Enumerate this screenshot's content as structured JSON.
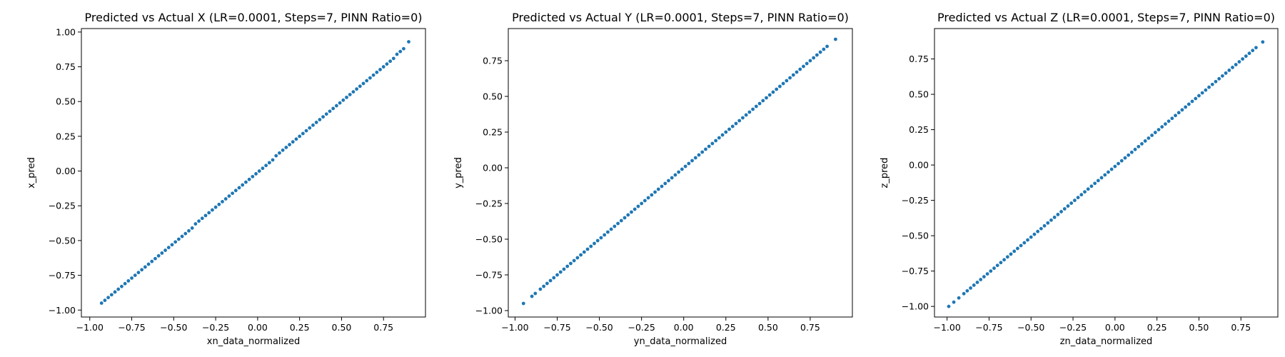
{
  "chart_data": [
    {
      "type": "scatter",
      "title": "Predicted vs Actual X (LR=0.0001, Steps=7, PINN Ratio=0)",
      "xlabel": "xn_data_normalized",
      "ylabel": "x_pred",
      "xlim": [
        -1.05,
        1.0
      ],
      "ylim": [
        -1.05,
        1.025
      ],
      "xticks": [
        -1.0,
        -0.75,
        -0.5,
        -0.25,
        0.0,
        0.25,
        0.5,
        0.75
      ],
      "xtick_labels": [
        "−1.00",
        "−0.75",
        "−0.50",
        "−0.25",
        "0.00",
        "0.25",
        "0.50",
        "0.75"
      ],
      "yticks": [
        -1.0,
        -0.75,
        -0.5,
        -0.25,
        0.0,
        0.25,
        0.5,
        0.75,
        1.0
      ],
      "ytick_labels": [
        "−1.00",
        "−0.75",
        "−0.50",
        "−0.25",
        "0.00",
        "0.25",
        "0.50",
        "0.75",
        "1.00"
      ],
      "grid": false,
      "color": "#1f77b4",
      "x": [
        -0.93,
        -0.91,
        -0.89,
        -0.87,
        -0.85,
        -0.83,
        -0.81,
        -0.79,
        -0.77,
        -0.75,
        -0.73,
        -0.71,
        -0.69,
        -0.67,
        -0.65,
        -0.63,
        -0.61,
        -0.59,
        -0.57,
        -0.55,
        -0.53,
        -0.51,
        -0.49,
        -0.47,
        -0.45,
        -0.43,
        -0.41,
        -0.39,
        -0.37,
        -0.35,
        -0.33,
        -0.31,
        -0.29,
        -0.27,
        -0.25,
        -0.23,
        -0.21,
        -0.19,
        -0.17,
        -0.15,
        -0.13,
        -0.11,
        -0.09,
        -0.07,
        -0.05,
        -0.03,
        -0.01,
        0.01,
        0.03,
        0.05,
        0.07,
        0.09,
        0.11,
        0.13,
        0.15,
        0.17,
        0.19,
        0.21,
        0.23,
        0.25,
        0.27,
        0.29,
        0.31,
        0.33,
        0.35,
        0.37,
        0.39,
        0.41,
        0.43,
        0.45,
        0.47,
        0.49,
        0.51,
        0.53,
        0.55,
        0.57,
        0.59,
        0.61,
        0.63,
        0.65,
        0.67,
        0.69,
        0.71,
        0.73,
        0.75,
        0.77,
        0.79,
        0.81,
        0.83,
        0.85,
        0.87,
        0.9
      ],
      "y": [
        -0.95,
        -0.93,
        -0.91,
        -0.89,
        -0.87,
        -0.85,
        -0.83,
        -0.81,
        -0.79,
        -0.77,
        -0.75,
        -0.73,
        -0.71,
        -0.69,
        -0.67,
        -0.65,
        -0.63,
        -0.61,
        -0.59,
        -0.57,
        -0.55,
        -0.53,
        -0.51,
        -0.49,
        -0.47,
        -0.45,
        -0.43,
        -0.41,
        -0.38,
        -0.36,
        -0.34,
        -0.32,
        -0.3,
        -0.28,
        -0.26,
        -0.24,
        -0.22,
        -0.2,
        -0.18,
        -0.16,
        -0.14,
        -0.12,
        -0.1,
        -0.08,
        -0.06,
        -0.04,
        -0.02,
        0.0,
        0.02,
        0.04,
        0.06,
        0.08,
        0.11,
        0.13,
        0.15,
        0.17,
        0.19,
        0.21,
        0.23,
        0.25,
        0.27,
        0.29,
        0.31,
        0.33,
        0.35,
        0.37,
        0.39,
        0.41,
        0.43,
        0.45,
        0.47,
        0.49,
        0.51,
        0.53,
        0.55,
        0.57,
        0.59,
        0.61,
        0.63,
        0.65,
        0.67,
        0.69,
        0.71,
        0.73,
        0.75,
        0.77,
        0.79,
        0.81,
        0.84,
        0.86,
        0.88,
        0.93
      ]
    },
    {
      "type": "scatter",
      "title": "Predicted vs Actual Y (LR=0.0001, Steps=7, PINN Ratio=0)",
      "xlabel": "yn_data_normalized",
      "ylabel": "y_pred",
      "xlim": [
        -1.04,
        1.0
      ],
      "ylim": [
        -1.045,
        0.975
      ],
      "xticks": [
        -1.0,
        -0.75,
        -0.5,
        -0.25,
        0.0,
        0.25,
        0.5,
        0.75
      ],
      "xtick_labels": [
        "−1.00",
        "−0.75",
        "−0.50",
        "−0.25",
        "0.00",
        "0.25",
        "0.50",
        "0.75"
      ],
      "yticks": [
        -1.0,
        -0.75,
        -0.5,
        -0.25,
        0.0,
        0.25,
        0.5,
        0.75
      ],
      "ytick_labels": [
        "−1.00",
        "−0.75",
        "−0.50",
        "−0.25",
        "0.00",
        "0.25",
        "0.50",
        "0.75"
      ],
      "grid": false,
      "color": "#1f77b4",
      "x": [
        -0.95,
        -0.9,
        -0.88,
        -0.85,
        -0.83,
        -0.81,
        -0.79,
        -0.77,
        -0.75,
        -0.73,
        -0.71,
        -0.69,
        -0.67,
        -0.65,
        -0.63,
        -0.61,
        -0.59,
        -0.57,
        -0.55,
        -0.53,
        -0.51,
        -0.49,
        -0.47,
        -0.45,
        -0.43,
        -0.41,
        -0.39,
        -0.37,
        -0.35,
        -0.33,
        -0.31,
        -0.29,
        -0.27,
        -0.25,
        -0.23,
        -0.21,
        -0.19,
        -0.17,
        -0.15,
        -0.13,
        -0.11,
        -0.09,
        -0.07,
        -0.05,
        -0.03,
        -0.01,
        0.01,
        0.03,
        0.05,
        0.07,
        0.09,
        0.11,
        0.13,
        0.15,
        0.17,
        0.19,
        0.21,
        0.23,
        0.25,
        0.27,
        0.29,
        0.31,
        0.33,
        0.35,
        0.37,
        0.39,
        0.41,
        0.43,
        0.45,
        0.47,
        0.49,
        0.51,
        0.53,
        0.55,
        0.57,
        0.59,
        0.61,
        0.63,
        0.65,
        0.67,
        0.69,
        0.71,
        0.73,
        0.75,
        0.77,
        0.79,
        0.81,
        0.83,
        0.85,
        0.9
      ],
      "y": [
        -0.95,
        -0.9,
        -0.88,
        -0.85,
        -0.83,
        -0.81,
        -0.79,
        -0.77,
        -0.75,
        -0.73,
        -0.71,
        -0.69,
        -0.67,
        -0.65,
        -0.63,
        -0.61,
        -0.59,
        -0.57,
        -0.55,
        -0.53,
        -0.51,
        -0.49,
        -0.47,
        -0.45,
        -0.43,
        -0.41,
        -0.39,
        -0.37,
        -0.35,
        -0.33,
        -0.31,
        -0.29,
        -0.27,
        -0.25,
        -0.23,
        -0.21,
        -0.19,
        -0.17,
        -0.15,
        -0.13,
        -0.11,
        -0.09,
        -0.07,
        -0.05,
        -0.03,
        -0.01,
        0.01,
        0.03,
        0.05,
        0.07,
        0.09,
        0.11,
        0.13,
        0.15,
        0.17,
        0.19,
        0.21,
        0.23,
        0.25,
        0.27,
        0.29,
        0.31,
        0.33,
        0.35,
        0.37,
        0.39,
        0.41,
        0.43,
        0.45,
        0.47,
        0.49,
        0.51,
        0.53,
        0.55,
        0.57,
        0.59,
        0.61,
        0.63,
        0.65,
        0.67,
        0.69,
        0.71,
        0.73,
        0.75,
        0.77,
        0.79,
        0.81,
        0.83,
        0.85,
        0.9
      ]
    },
    {
      "type": "scatter",
      "title": "Predicted vs Actual Z (LR=0.0001, Steps=7, PINN Ratio=0)",
      "xlabel": "zn_data_normalized",
      "ylabel": "z_pred",
      "xlim": [
        -1.075,
        0.97
      ],
      "ylim": [
        -1.075,
        0.965
      ],
      "xticks": [
        -1.0,
        -0.75,
        -0.5,
        -0.25,
        0.0,
        0.25,
        0.5,
        0.75
      ],
      "xtick_labels": [
        "−1.00",
        "−0.75",
        "−0.50",
        "−0.25",
        "0.00",
        "0.25",
        "0.50",
        "0.75"
      ],
      "yticks": [
        -1.0,
        -0.75,
        -0.5,
        -0.25,
        0.0,
        0.25,
        0.5,
        0.75
      ],
      "ytick_labels": [
        "−1.00",
        "−0.75",
        "−0.50",
        "−0.25",
        "0.00",
        "0.25",
        "0.50",
        "0.75"
      ],
      "grid": false,
      "color": "#1f77b4",
      "x": [
        -0.99,
        -0.96,
        -0.93,
        -0.9,
        -0.88,
        -0.86,
        -0.84,
        -0.82,
        -0.8,
        -0.78,
        -0.76,
        -0.74,
        -0.72,
        -0.7,
        -0.68,
        -0.66,
        -0.64,
        -0.62,
        -0.6,
        -0.58,
        -0.56,
        -0.54,
        -0.52,
        -0.5,
        -0.48,
        -0.46,
        -0.44,
        -0.42,
        -0.4,
        -0.38,
        -0.36,
        -0.34,
        -0.32,
        -0.3,
        -0.28,
        -0.26,
        -0.24,
        -0.22,
        -0.2,
        -0.18,
        -0.16,
        -0.14,
        -0.12,
        -0.1,
        -0.08,
        -0.06,
        -0.04,
        -0.02,
        0.0,
        0.02,
        0.04,
        0.06,
        0.08,
        0.1,
        0.12,
        0.14,
        0.16,
        0.18,
        0.2,
        0.22,
        0.24,
        0.26,
        0.28,
        0.3,
        0.32,
        0.34,
        0.36,
        0.38,
        0.4,
        0.42,
        0.44,
        0.46,
        0.48,
        0.5,
        0.52,
        0.54,
        0.56,
        0.58,
        0.6,
        0.62,
        0.64,
        0.66,
        0.68,
        0.7,
        0.72,
        0.74,
        0.76,
        0.78,
        0.8,
        0.82,
        0.84,
        0.88
      ],
      "y": [
        -1.0,
        -0.97,
        -0.94,
        -0.91,
        -0.89,
        -0.87,
        -0.85,
        -0.83,
        -0.81,
        -0.79,
        -0.77,
        -0.75,
        -0.73,
        -0.71,
        -0.69,
        -0.67,
        -0.65,
        -0.63,
        -0.61,
        -0.59,
        -0.57,
        -0.55,
        -0.53,
        -0.51,
        -0.49,
        -0.47,
        -0.45,
        -0.43,
        -0.41,
        -0.39,
        -0.37,
        -0.35,
        -0.33,
        -0.31,
        -0.29,
        -0.27,
        -0.25,
        -0.23,
        -0.21,
        -0.19,
        -0.17,
        -0.15,
        -0.13,
        -0.11,
        -0.09,
        -0.07,
        -0.05,
        -0.03,
        -0.01,
        0.01,
        0.03,
        0.05,
        0.07,
        0.09,
        0.11,
        0.13,
        0.15,
        0.17,
        0.19,
        0.21,
        0.23,
        0.25,
        0.27,
        0.29,
        0.31,
        0.33,
        0.35,
        0.37,
        0.39,
        0.41,
        0.43,
        0.45,
        0.47,
        0.49,
        0.51,
        0.53,
        0.55,
        0.57,
        0.59,
        0.61,
        0.63,
        0.65,
        0.67,
        0.69,
        0.71,
        0.73,
        0.75,
        0.77,
        0.79,
        0.81,
        0.83,
        0.87
      ]
    }
  ]
}
